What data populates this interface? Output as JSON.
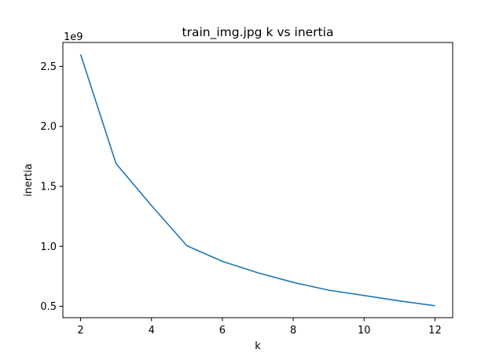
{
  "chart_data": {
    "type": "line",
    "title": "train_img.jpg k vs inertia",
    "xlabel": "k",
    "ylabel": "inertia",
    "y_scale_label": "1e9",
    "x": [
      2,
      3,
      4,
      5,
      6,
      7,
      8,
      9,
      10,
      11,
      12
    ],
    "series": [
      {
        "values": [
          2.6,
          1.69,
          1.34,
          1.005,
          0.875,
          0.78,
          0.7,
          0.635,
          0.59,
          0.545,
          0.505
        ]
      }
    ],
    "x_ticks": [
      "2",
      "4",
      "6",
      "8",
      "10",
      "12"
    ],
    "y_ticks": [
      "0.5",
      "1.0",
      "1.5",
      "2.0",
      "2.5"
    ],
    "xlim": [
      1.5,
      12.5
    ],
    "ylim": [
      0.4055,
      2.6995
    ],
    "grid": false,
    "line_color": "#1f77b4"
  }
}
